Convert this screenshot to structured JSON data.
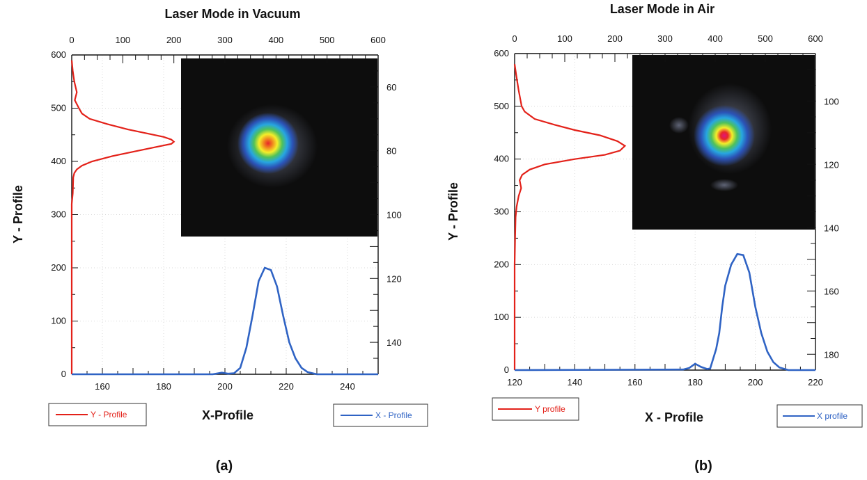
{
  "colors": {
    "y_profile": "#e32119",
    "x_profile": "#2f63c4",
    "grid": "#d8d8d8",
    "inset_background": "#0d0d0d"
  },
  "chart_data": [
    {
      "type": "line",
      "panel_label": "(a)",
      "title": "Laser Mode in Vacuum",
      "xlabel": "X-Profile",
      "ylabel": "Y - Profile",
      "x_axis": {
        "range": [
          150,
          250
        ],
        "ticks": [
          "160",
          "180",
          "200",
          "220",
          "240"
        ]
      },
      "y_axis": {
        "range": [
          0,
          600
        ],
        "ticks": [
          "0",
          "100",
          "200",
          "300",
          "400",
          "500",
          "600"
        ]
      },
      "top_axis": {
        "range": [
          0,
          600
        ],
        "ticks": [
          "0",
          "100",
          "200",
          "300",
          "400",
          "500",
          "600"
        ]
      },
      "right_axis": {
        "range": [
          150,
          50
        ],
        "ticks": [
          "60",
          "80",
          "100",
          "120",
          "140"
        ]
      },
      "grid": true,
      "legend": [
        {
          "label": "Y - Profile",
          "series": "y",
          "placement": "bottom-left"
        },
        {
          "label": "X - Profile",
          "series": "x",
          "placement": "bottom-right"
        }
      ],
      "series": [
        {
          "key": "y",
          "name": "Y - Profile",
          "plotted_against": "top_axis vs y_axis",
          "points": [
            [
              0,
              590
            ],
            [
              2,
              570
            ],
            [
              5,
              550
            ],
            [
              10,
              530
            ],
            [
              6,
              515
            ],
            [
              14,
              500
            ],
            [
              20,
              490
            ],
            [
              35,
              480
            ],
            [
              70,
              470
            ],
            [
              110,
              460
            ],
            [
              150,
              452
            ],
            [
              180,
              446
            ],
            [
              195,
              441
            ],
            [
              200,
              437
            ],
            [
              195,
              433
            ],
            [
              170,
              428
            ],
            [
              120,
              418
            ],
            [
              80,
              410
            ],
            [
              40,
              400
            ],
            [
              20,
              392
            ],
            [
              10,
              385
            ],
            [
              5,
              378
            ],
            [
              3,
              370
            ],
            [
              2,
              340
            ],
            [
              0,
              320
            ],
            [
              0,
              0
            ]
          ]
        },
        {
          "key": "x",
          "name": "X - Profile",
          "plotted_against": "x_axis vs y_axis",
          "points": [
            [
              150,
              0
            ],
            [
              196,
              0
            ],
            [
              199,
              3
            ],
            [
              201,
              1
            ],
            [
              203,
              2
            ],
            [
              205,
              12
            ],
            [
              207,
              50
            ],
            [
              209,
              110
            ],
            [
              211,
              175
            ],
            [
              213,
              200
            ],
            [
              215,
              196
            ],
            [
              217,
              165
            ],
            [
              219,
              110
            ],
            [
              221,
              60
            ],
            [
              223,
              30
            ],
            [
              225,
              12
            ],
            [
              227,
              4
            ],
            [
              230,
              0
            ],
            [
              250,
              0
            ]
          ]
        }
      ],
      "inset": {
        "description": "beam spot",
        "peak_x_right_axis": 381,
        "peak_y_right_axis": 79
      }
    },
    {
      "type": "line",
      "panel_label": "(b)",
      "title": "Laser Mode in Air",
      "xlabel": "X -  Profile",
      "ylabel": "Y - Profile",
      "x_axis": {
        "range": [
          120,
          220
        ],
        "ticks": [
          "120",
          "140",
          "160",
          "180",
          "200",
          "220"
        ]
      },
      "y_axis": {
        "range": [
          0,
          600
        ],
        "ticks": [
          "0",
          "100",
          "200",
          "300",
          "400",
          "500",
          "600"
        ]
      },
      "top_axis": {
        "range": [
          0,
          600
        ],
        "ticks": [
          "0",
          "100",
          "200",
          "300",
          "400",
          "500",
          "600"
        ]
      },
      "right_axis": {
        "range": [
          185,
          85
        ],
        "ticks": [
          "100",
          "120",
          "140",
          "160",
          "180"
        ]
      },
      "grid": true,
      "legend": [
        {
          "label": "Y profile",
          "series": "y",
          "placement": "bottom-left"
        },
        {
          "label": "X profile",
          "series": "x",
          "placement": "bottom-right"
        }
      ],
      "series": [
        {
          "key": "y",
          "name": "Y profile",
          "plotted_against": "top_axis vs y_axis",
          "points": [
            [
              0,
              580
            ],
            [
              3,
              560
            ],
            [
              8,
              530
            ],
            [
              14,
              500
            ],
            [
              20,
              490
            ],
            [
              40,
              476
            ],
            [
              80,
              465
            ],
            [
              120,
              455
            ],
            [
              170,
              445
            ],
            [
              205,
              434
            ],
            [
              220,
              425
            ],
            [
              210,
              416
            ],
            [
              180,
              408
            ],
            [
              120,
              400
            ],
            [
              60,
              390
            ],
            [
              30,
              380
            ],
            [
              15,
              370
            ],
            [
              10,
              360
            ],
            [
              13,
              345
            ],
            [
              8,
              330
            ],
            [
              4,
              310
            ],
            [
              2,
              290
            ],
            [
              1,
              250
            ],
            [
              0,
              200
            ],
            [
              0,
              0
            ]
          ]
        },
        {
          "key": "x",
          "name": "X profile",
          "plotted_against": "x_axis vs y_axis",
          "points": [
            [
              120,
              0
            ],
            [
              176,
              1
            ],
            [
              178,
              4
            ],
            [
              180,
              12
            ],
            [
              182,
              6
            ],
            [
              184,
              2
            ],
            [
              185,
              3
            ],
            [
              187,
              40
            ],
            [
              188,
              70
            ],
            [
              189,
              120
            ],
            [
              190,
              160
            ],
            [
              192,
              200
            ],
            [
              194,
              220
            ],
            [
              196,
              218
            ],
            [
              198,
              185
            ],
            [
              200,
              120
            ],
            [
              202,
              70
            ],
            [
              204,
              35
            ],
            [
              206,
              15
            ],
            [
              208,
              5
            ],
            [
              211,
              0
            ],
            [
              220,
              0
            ]
          ]
        }
      ],
      "inset": {
        "description": "beam spot",
        "peak_x_right_axis": 416,
        "peak_y_right_axis": 112
      }
    }
  ]
}
